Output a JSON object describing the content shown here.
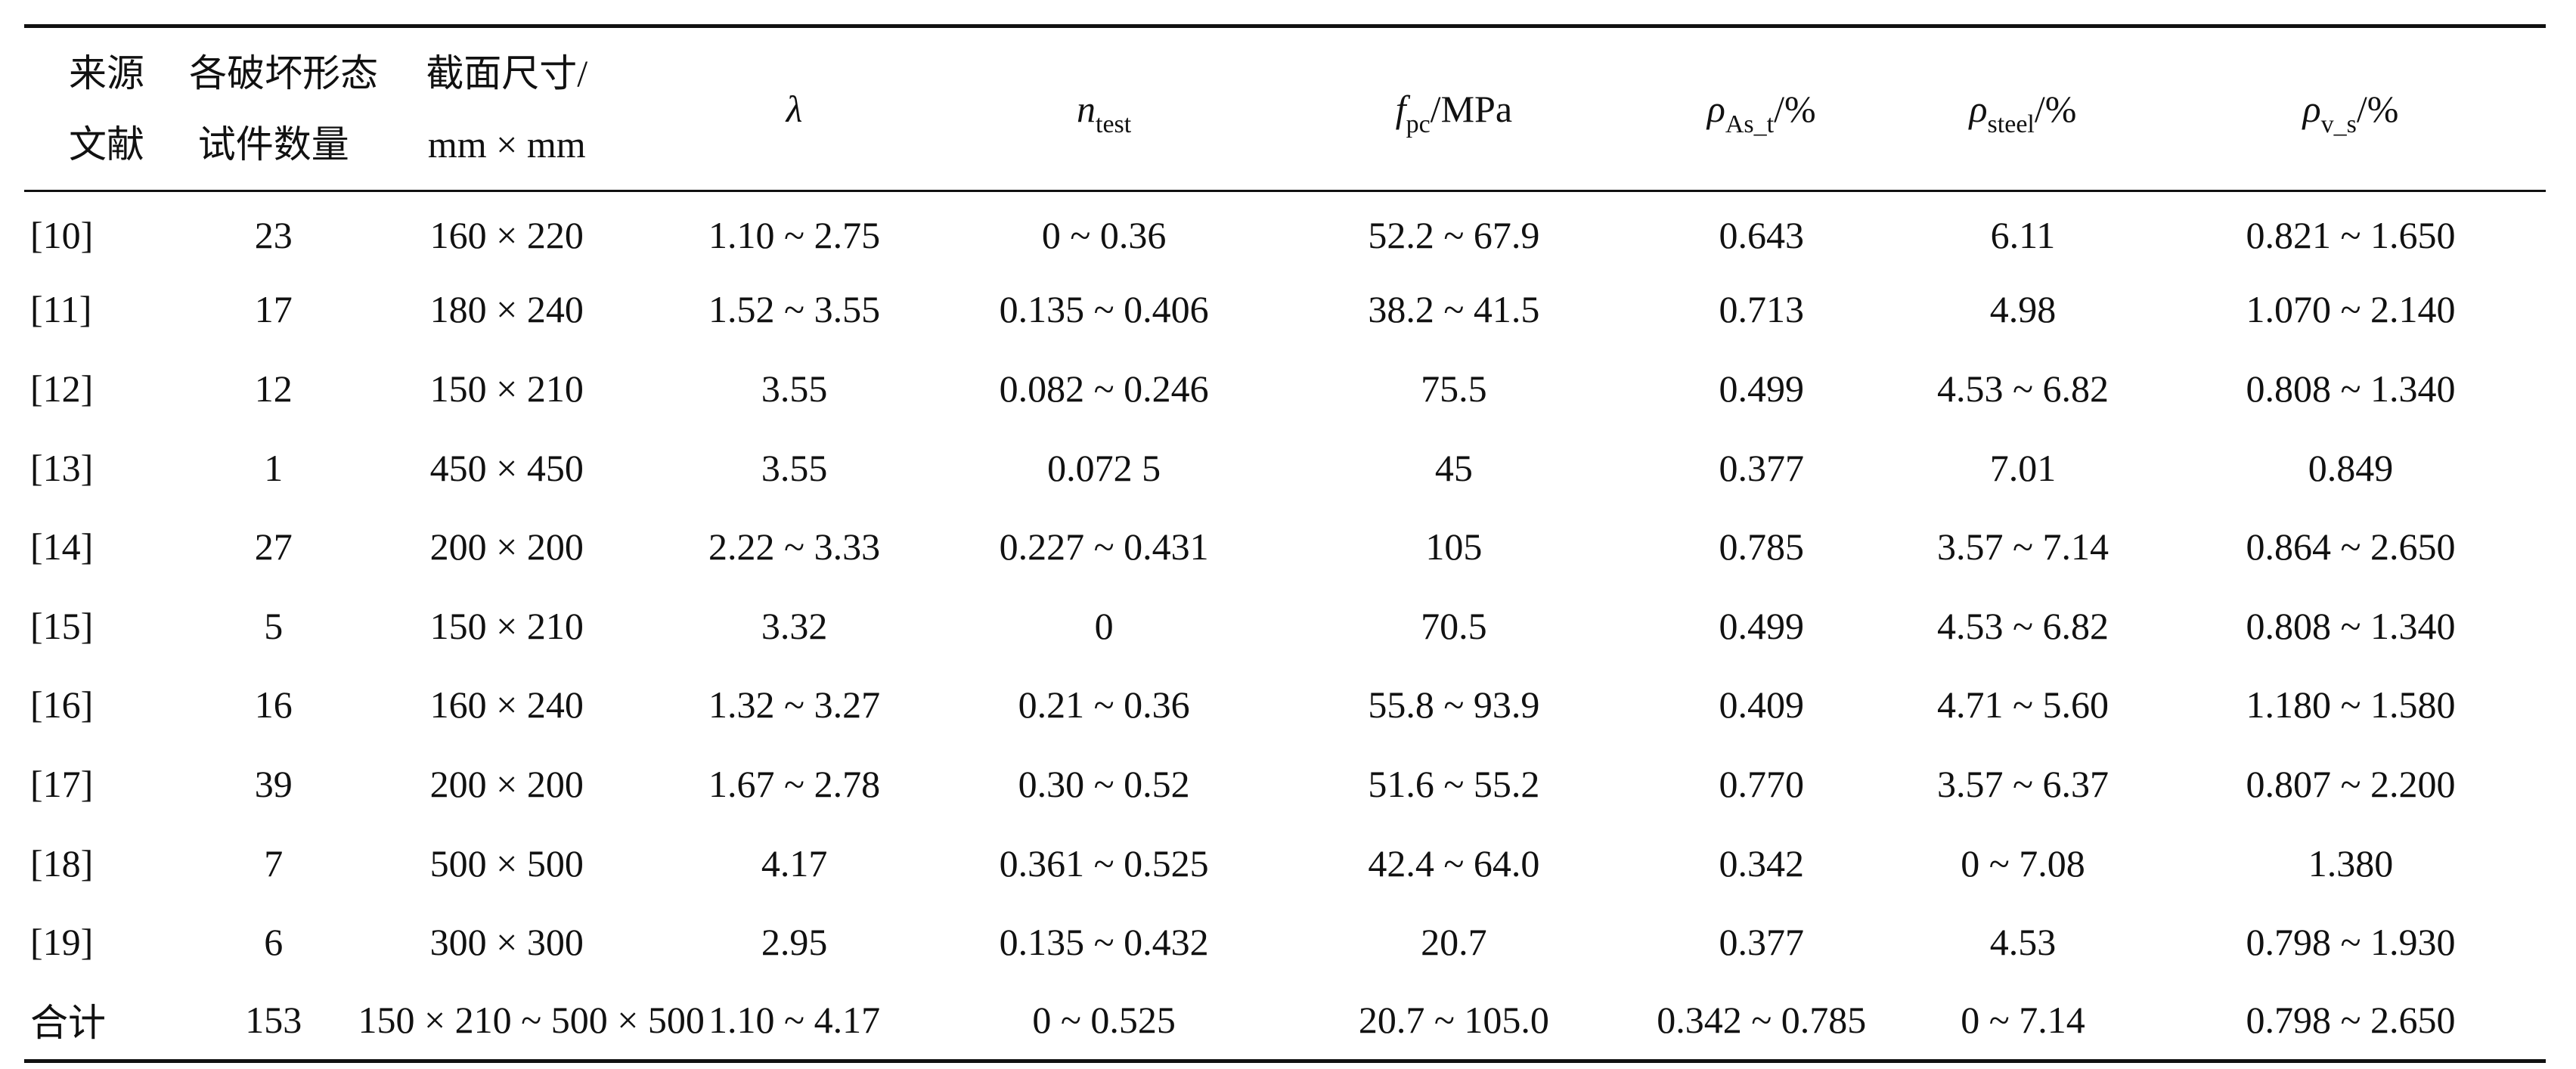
{
  "table": {
    "headers": {
      "source": [
        "来源",
        "文献"
      ],
      "count": [
        "各破坏形态",
        "试件数量"
      ],
      "section": [
        "截面尺寸/",
        "mm × mm"
      ],
      "lambda": {
        "symbol": "λ"
      },
      "n_test": {
        "symbol": "n",
        "sub": "test"
      },
      "f_pc": {
        "symbol": "f",
        "sub": "pc",
        "unit": "/MPa"
      },
      "rho_as": {
        "symbol": "ρ",
        "sub": "As_t",
        "unit": "/%"
      },
      "rho_steel": {
        "symbol": "ρ",
        "sub": "steel",
        "unit": "/%"
      },
      "rho_v": {
        "symbol": "ρ",
        "sub": "v_s",
        "unit": "/%"
      }
    },
    "rows": [
      {
        "source": "[10]",
        "count": "23",
        "section": "160 × 220",
        "lambda": "1.10 ~ 2.75",
        "n_test": "0 ~ 0.36",
        "f_pc": "52.2 ~ 67.9",
        "rho_as": "0.643",
        "rho_steel": "6.11",
        "rho_v": "0.821 ~ 1.650"
      },
      {
        "source": "[11]",
        "count": "17",
        "section": "180 × 240",
        "lambda": "1.52 ~ 3.55",
        "n_test": "0.135 ~ 0.406",
        "f_pc": "38.2 ~ 41.5",
        "rho_as": "0.713",
        "rho_steel": "4.98",
        "rho_v": "1.070 ~ 2.140"
      },
      {
        "source": "[12]",
        "count": "12",
        "section": "150 × 210",
        "lambda": "3.55",
        "n_test": "0.082 ~ 0.246",
        "f_pc": "75.5",
        "rho_as": "0.499",
        "rho_steel": "4.53 ~ 6.82",
        "rho_v": "0.808 ~ 1.340"
      },
      {
        "source": "[13]",
        "count": "1",
        "section": "450 × 450",
        "lambda": "3.55",
        "n_test": "0.072 5",
        "f_pc": "45",
        "rho_as": "0.377",
        "rho_steel": "7.01",
        "rho_v": "0.849"
      },
      {
        "source": "[14]",
        "count": "27",
        "section": "200 × 200",
        "lambda": "2.22 ~ 3.33",
        "n_test": "0.227 ~ 0.431",
        "f_pc": "105",
        "rho_as": "0.785",
        "rho_steel": "3.57 ~ 7.14",
        "rho_v": "0.864 ~ 2.650"
      },
      {
        "source": "[15]",
        "count": "5",
        "section": "150 × 210",
        "lambda": "3.32",
        "n_test": "0",
        "f_pc": "70.5",
        "rho_as": "0.499",
        "rho_steel": "4.53 ~ 6.82",
        "rho_v": "0.808 ~ 1.340"
      },
      {
        "source": "[16]",
        "count": "16",
        "section": "160 × 240",
        "lambda": "1.32 ~ 3.27",
        "n_test": "0.21 ~ 0.36",
        "f_pc": "55.8 ~ 93.9",
        "rho_as": "0.409",
        "rho_steel": "4.71 ~ 5.60",
        "rho_v": "1.180 ~ 1.580"
      },
      {
        "source": "[17]",
        "count": "39",
        "section": "200 × 200",
        "lambda": "1.67 ~ 2.78",
        "n_test": "0.30 ~ 0.52",
        "f_pc": "51.6 ~ 55.2",
        "rho_as": "0.770",
        "rho_steel": "3.57 ~ 6.37",
        "rho_v": "0.807 ~ 2.200"
      },
      {
        "source": "[18]",
        "count": "7",
        "section": "500 × 500",
        "lambda": "4.17",
        "n_test": "0.361 ~ 0.525",
        "f_pc": "42.4 ~ 64.0",
        "rho_as": "0.342",
        "rho_steel": "0 ~ 7.08",
        "rho_v": "1.380"
      },
      {
        "source": "[19]",
        "count": "6",
        "section": "300 × 300",
        "lambda": "2.95",
        "n_test": "0.135 ~ 0.432",
        "f_pc": "20.7",
        "rho_as": "0.377",
        "rho_steel": "4.53",
        "rho_v": "0.798 ~ 1.930"
      },
      {
        "source": "合计",
        "count": "153",
        "section": "150 × 210 ~ 500 × 500",
        "lambda": "1.10 ~ 4.17",
        "n_test": "0 ~ 0.525",
        "f_pc": "20.7 ~ 105.0",
        "rho_as": "0.342 ~ 0.785",
        "rho_steel": "0 ~ 7.14",
        "rho_v": "0.798 ~ 2.650"
      }
    ]
  }
}
